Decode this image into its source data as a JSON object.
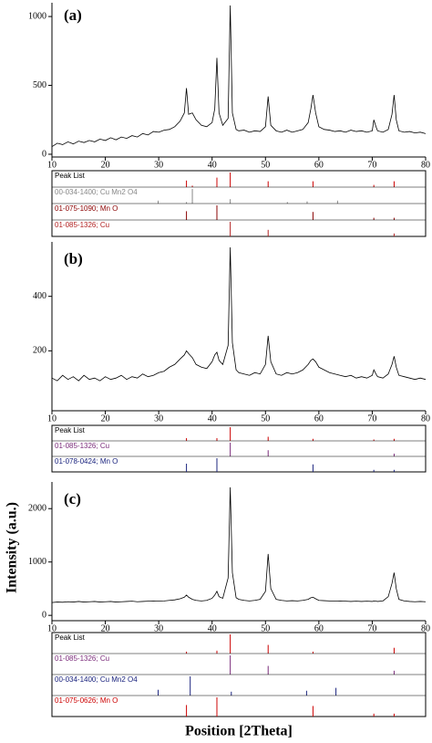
{
  "chart_data": [
    {
      "type": "line",
      "label": "(a)",
      "xlim": [
        10,
        80
      ],
      "xticks": [
        10,
        20,
        30,
        40,
        50,
        60,
        70,
        80
      ],
      "ylim": [
        -20,
        1100
      ],
      "yticks": [
        0,
        500,
        1000
      ],
      "x": [
        10,
        11,
        12,
        13,
        14,
        15,
        16,
        17,
        18,
        19,
        20,
        21,
        22,
        23,
        24,
        25,
        26,
        27,
        28,
        29,
        30,
        31,
        32,
        33,
        34,
        34.8,
        35.2,
        35.6,
        36.3,
        37,
        38,
        39,
        40,
        40.5,
        40.9,
        41.3,
        42,
        43,
        43.4,
        43.8,
        44.5,
        45,
        46,
        47,
        48,
        49,
        50,
        50.5,
        51,
        52,
        53,
        54,
        55,
        56,
        57,
        58,
        58.5,
        58.9,
        59.4,
        60,
        61,
        62,
        63,
        64,
        65,
        66,
        67,
        68,
        69,
        70,
        70.3,
        70.7,
        71,
        72,
        73,
        73.7,
        74.1,
        74.5,
        75,
        76,
        77,
        78,
        79,
        80
      ],
      "color": "#000000",
      "values": [
        55,
        80,
        70,
        90,
        75,
        95,
        85,
        100,
        90,
        110,
        100,
        120,
        105,
        125,
        115,
        135,
        125,
        150,
        140,
        165,
        160,
        175,
        180,
        200,
        240,
        300,
        480,
        290,
        300,
        250,
        210,
        200,
        230,
        330,
        700,
        300,
        210,
        260,
        1080,
        300,
        180,
        170,
        175,
        160,
        170,
        165,
        200,
        420,
        210,
        170,
        160,
        175,
        160,
        170,
        180,
        230,
        330,
        430,
        300,
        200,
        180,
        175,
        165,
        170,
        160,
        175,
        165,
        170,
        160,
        170,
        250,
        200,
        170,
        160,
        180,
        290,
        430,
        250,
        170,
        160,
        165,
        155,
        160,
        150
      ],
      "peak_list": [
        {
          "name": "Peak List",
          "color": "#cc0000",
          "label_color": "#000000",
          "positions": [
            35.2,
            36.3,
            40.9,
            43.4,
            50.5,
            58.9,
            70.3,
            74.1
          ],
          "heights": [
            45,
            10,
            65,
            100,
            40,
            40,
            15,
            40
          ]
        },
        {
          "name": "00-034-1400; Cu Mn2 O4",
          "color": "#888888",
          "label_color": "#888888",
          "positions": [
            29.9,
            35.2,
            36.3,
            43.4,
            54.1,
            57.8,
            63.5
          ],
          "heights": [
            20,
            10,
            100,
            30,
            10,
            15,
            20
          ]
        },
        {
          "name": "01-075-1090; Mn O",
          "color": "#8b0000",
          "label_color": "#8b0000",
          "positions": [
            35.2,
            40.9,
            58.9,
            70.3,
            74.1
          ],
          "heights": [
            60,
            100,
            55,
            15,
            15
          ]
        },
        {
          "name": "01-085-1326; Cu",
          "color": "#b22222",
          "label_color": "#b22222",
          "positions": [
            43.4,
            50.5,
            74.1
          ],
          "heights": [
            100,
            45,
            20
          ]
        }
      ]
    },
    {
      "type": "line",
      "label": "(b)",
      "xlim": [
        10,
        80
      ],
      "xticks": [
        10,
        20,
        30,
        40,
        50,
        60,
        70,
        80
      ],
      "ylim": [
        -20,
        600
      ],
      "yticks": [
        200,
        400
      ],
      "x": [
        10,
        11,
        12,
        13,
        14,
        15,
        16,
        17,
        18,
        19,
        20,
        21,
        22,
        23,
        24,
        25,
        26,
        27,
        28,
        29,
        30,
        31,
        32,
        33,
        34,
        34.8,
        35.2,
        35.6,
        36.3,
        37,
        38,
        39,
        40,
        40.5,
        40.9,
        41.3,
        42,
        43,
        43.4,
        43.8,
        44.5,
        45,
        46,
        47,
        48,
        49,
        50,
        50.5,
        51,
        52,
        53,
        54,
        55,
        56,
        57,
        58,
        58.5,
        58.9,
        59.4,
        60,
        61,
        62,
        63,
        64,
        65,
        66,
        67,
        68,
        69,
        70,
        70.3,
        70.7,
        71,
        72,
        73,
        73.7,
        74.1,
        74.5,
        75,
        76,
        77,
        78,
        79,
        80
      ],
      "color": "#000000",
      "values": [
        100,
        90,
        110,
        95,
        105,
        90,
        110,
        95,
        100,
        90,
        105,
        95,
        100,
        110,
        95,
        105,
        100,
        115,
        105,
        110,
        120,
        125,
        140,
        150,
        170,
        185,
        200,
        190,
        175,
        150,
        140,
        135,
        160,
        185,
        195,
        165,
        150,
        220,
        580,
        230,
        130,
        120,
        115,
        110,
        120,
        115,
        150,
        255,
        160,
        115,
        110,
        120,
        115,
        120,
        130,
        150,
        165,
        170,
        160,
        140,
        130,
        120,
        115,
        110,
        105,
        110,
        100,
        105,
        100,
        110,
        130,
        115,
        105,
        100,
        115,
        150,
        180,
        140,
        110,
        105,
        100,
        95,
        100,
        95
      ],
      "peak_list": [
        {
          "name": "Peak List",
          "color": "#cc0000",
          "label_color": "#000000",
          "positions": [
            35.2,
            40.9,
            43.4,
            50.5,
            58.9,
            70.3,
            74.1
          ],
          "heights": [
            20,
            20,
            100,
            30,
            15,
            10,
            15
          ]
        },
        {
          "name": "01-085-1326; Cu",
          "color": "#7b2c7b",
          "label_color": "#7b2c7b",
          "positions": [
            43.4,
            50.5,
            74.1
          ],
          "heights": [
            100,
            45,
            20
          ]
        },
        {
          "name": "01-078-0424; Mn O",
          "color": "#1a237e",
          "label_color": "#1a237e",
          "positions": [
            35.2,
            40.9,
            58.9,
            70.3,
            74.1
          ],
          "heights": [
            60,
            100,
            55,
            15,
            15
          ]
        }
      ]
    },
    {
      "type": "line",
      "label": "(c)",
      "xlim": [
        10,
        80
      ],
      "xticks": [
        10,
        20,
        30,
        40,
        50,
        60,
        70,
        80
      ],
      "ylim": [
        -100,
        2500
      ],
      "yticks": [
        0,
        1000,
        2000
      ],
      "xlabel": "Position [2Theta]",
      "ylabel": "Intensity (a.u.)",
      "x": [
        10,
        11,
        12,
        13,
        14,
        15,
        16,
        17,
        18,
        19,
        20,
        21,
        22,
        23,
        24,
        25,
        26,
        27,
        28,
        29,
        30,
        31,
        32,
        33,
        34,
        34.8,
        35.2,
        35.6,
        36.3,
        37,
        38,
        39,
        40,
        40.5,
        40.9,
        41.3,
        42,
        43,
        43.4,
        43.8,
        44.5,
        45,
        46,
        47,
        48,
        49,
        50,
        50.5,
        51,
        52,
        53,
        54,
        55,
        56,
        57,
        58,
        58.5,
        58.9,
        59.4,
        60,
        61,
        62,
        63,
        64,
        65,
        66,
        67,
        68,
        69,
        70,
        70.3,
        70.7,
        71,
        72,
        73,
        73.7,
        74.1,
        74.5,
        75,
        76,
        77,
        78,
        79,
        80
      ],
      "color": "#000000",
      "values": [
        240,
        250,
        245,
        255,
        250,
        260,
        250,
        255,
        260,
        250,
        255,
        260,
        250,
        255,
        260,
        265,
        255,
        260,
        265,
        270,
        265,
        270,
        280,
        290,
        310,
        340,
        380,
        340,
        300,
        280,
        270,
        280,
        320,
        380,
        450,
        350,
        320,
        700,
        2400,
        800,
        330,
        300,
        280,
        270,
        280,
        300,
        450,
        1150,
        500,
        300,
        280,
        270,
        275,
        270,
        280,
        300,
        330,
        340,
        310,
        280,
        275,
        270,
        265,
        270,
        265,
        260,
        265,
        260,
        265,
        260,
        270,
        265,
        260,
        270,
        350,
        600,
        800,
        500,
        300,
        270,
        260,
        255,
        260,
        255
      ],
      "peak_list": [
        {
          "name": "Peak List",
          "color": "#cc0000",
          "label_color": "#000000",
          "positions": [
            35.2,
            40.9,
            43.4,
            50.5,
            58.9,
            74.1
          ],
          "heights": [
            10,
            15,
            100,
            45,
            10,
            30
          ]
        },
        {
          "name": "01-085-1326; Cu",
          "color": "#7b2c7b",
          "label_color": "#7b2c7b",
          "positions": [
            43.4,
            50.5,
            74.1
          ],
          "heights": [
            100,
            45,
            20
          ]
        },
        {
          "name": "00-034-1400; Cu Mn2 O4",
          "color": "#1a237e",
          "label_color": "#1a237e",
          "positions": [
            29.9,
            35.9,
            43.6,
            57.7,
            63.2
          ],
          "heights": [
            30,
            100,
            20,
            25,
            40
          ]
        },
        {
          "name": "01-075-0626; Mn O",
          "color": "#cc0000",
          "label_color": "#cc0000",
          "positions": [
            35.2,
            40.9,
            58.9,
            70.3,
            74.1
          ],
          "heights": [
            60,
            100,
            55,
            15,
            15
          ]
        }
      ]
    }
  ]
}
